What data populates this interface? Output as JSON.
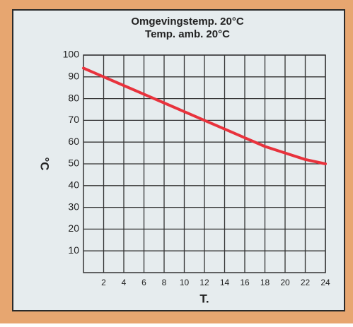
{
  "chart_data": {
    "type": "line",
    "title": "Omgevingstemp. 20°C",
    "subtitle": "Temp. amb. 20°C",
    "ylabel": "°C",
    "xlabel": "T.",
    "x": [
      0,
      2,
      4,
      6,
      8,
      10,
      12,
      14,
      16,
      18,
      20,
      22,
      24
    ],
    "series": [
      {
        "name": "Omgevingstemp. 20°C",
        "color": "#e8323c",
        "values": [
          94,
          90,
          86,
          82,
          78,
          74,
          70,
          66,
          62,
          58,
          55,
          52,
          50
        ]
      }
    ],
    "xlim": [
      0,
      24
    ],
    "xticks": [
      2,
      4,
      6,
      8,
      10,
      12,
      14,
      16,
      18,
      20,
      22,
      24
    ],
    "ylim": [
      0,
      100
    ],
    "yticks": [
      10,
      20,
      30,
      40,
      50,
      60,
      70,
      80,
      90,
      100
    ],
    "grid": true
  }
}
